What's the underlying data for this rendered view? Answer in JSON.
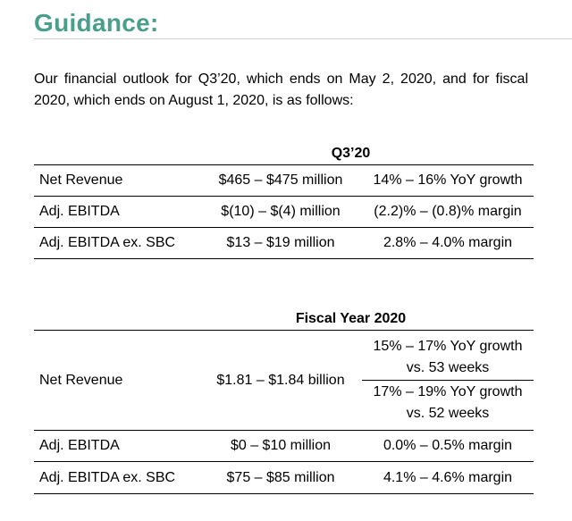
{
  "heading": "Guidance:",
  "intro": "Our financial outlook for Q3’20, which ends on May 2, 2020, and for fiscal 2020, which ends on August 1, 2020, is as follows:",
  "q3_table": {
    "title": "Q3’20",
    "rows": [
      {
        "label": "Net Revenue",
        "range": "$465 – $475 million",
        "metric": "14% – 16% YoY growth"
      },
      {
        "label": "Adj. EBITDA",
        "range": "$(10) – $(4) million",
        "metric": "(2.2)% – (0.8)% margin"
      },
      {
        "label": "Adj. EBITDA ex. SBC",
        "range": "$13 – $19 million",
        "metric": "2.8% – 4.0% margin"
      }
    ]
  },
  "fy_table": {
    "title": "Fiscal Year 2020",
    "net_revenue": {
      "label": "Net Revenue",
      "range": "$1.81 – $1.84 billion",
      "metric_53_line1": "15% – 17% YoY growth",
      "metric_53_line2": "vs. 53 weeks",
      "metric_52_line1": "17% – 19% YoY growth",
      "metric_52_line2": "vs. 52 weeks"
    },
    "rows": [
      {
        "label": "Adj. EBITDA",
        "range": "$0 – $10 million",
        "metric": "0.0% – 0.5% margin"
      },
      {
        "label": "Adj. EBITDA ex. SBC",
        "range": "$75 – $85 million",
        "metric": "4.1% – 4.6% margin"
      }
    ]
  },
  "colors": {
    "heading": "#4a9e8c"
  }
}
